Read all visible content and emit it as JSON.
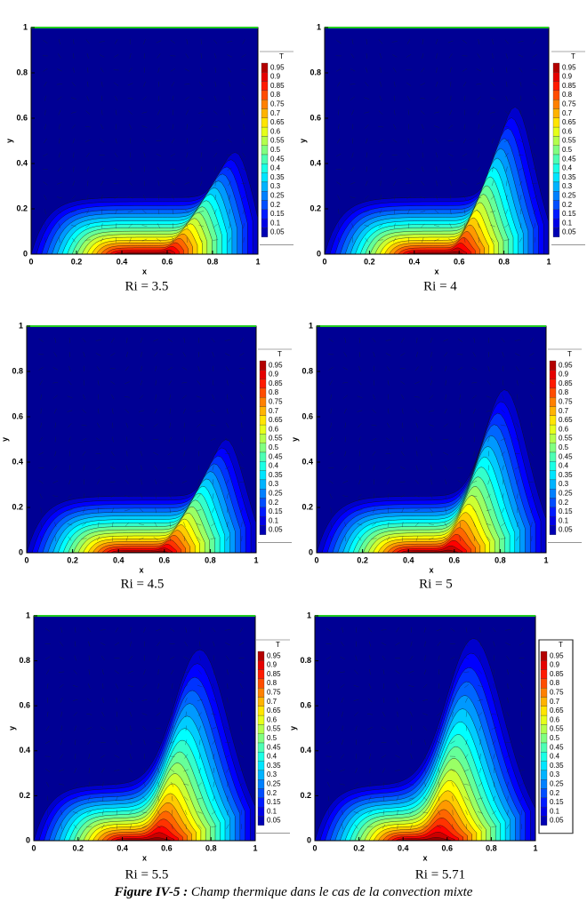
{
  "panels": [
    {
      "caption": "Ri = 3.5",
      "xlabel": "x",
      "ylabel": "y",
      "xticks": [
        0,
        0.2,
        0.4,
        0.6,
        0.8,
        1
      ],
      "yticks": [
        0,
        0.2,
        0.4,
        0.6,
        0.8,
        1
      ],
      "legend_title": "T",
      "levels": [
        0.95,
        0.9,
        0.85,
        0.8,
        0.75,
        0.7,
        0.65,
        0.6,
        0.55,
        0.5,
        0.45,
        0.4,
        0.35,
        0.3,
        0.25,
        0.2,
        0.15,
        0.1,
        0.05
      ]
    },
    {
      "caption": "Ri = 4",
      "xlabel": "x",
      "ylabel": "y",
      "xticks": [
        0,
        0.2,
        0.4,
        0.6,
        0.8,
        1
      ],
      "yticks": [
        0,
        0.2,
        0.4,
        0.6,
        0.8,
        1
      ],
      "legend_title": "T",
      "levels": [
        0.95,
        0.9,
        0.85,
        0.8,
        0.75,
        0.7,
        0.65,
        0.6,
        0.55,
        0.5,
        0.45,
        0.4,
        0.35,
        0.3,
        0.25,
        0.2,
        0.15,
        0.1,
        0.05
      ]
    },
    {
      "caption": "Ri = 4.5",
      "xlabel": "x",
      "ylabel": "y",
      "xticks": [
        0,
        0.2,
        0.4,
        0.6,
        0.8,
        1
      ],
      "yticks": [
        0,
        0.2,
        0.4,
        0.6,
        0.8,
        1
      ],
      "legend_title": "T",
      "levels": [
        0.95,
        0.9,
        0.85,
        0.8,
        0.75,
        0.7,
        0.65,
        0.6,
        0.55,
        0.5,
        0.45,
        0.4,
        0.35,
        0.3,
        0.25,
        0.2,
        0.15,
        0.1,
        0.05
      ]
    },
    {
      "caption": "Ri = 5",
      "xlabel": "x",
      "ylabel": "y",
      "xticks": [
        0,
        0.2,
        0.4,
        0.6,
        0.8,
        1
      ],
      "yticks": [
        0,
        0.2,
        0.4,
        0.6,
        0.8,
        1
      ],
      "legend_title": "T",
      "levels": [
        0.95,
        0.9,
        0.85,
        0.8,
        0.75,
        0.7,
        0.65,
        0.6,
        0.55,
        0.5,
        0.45,
        0.4,
        0.35,
        0.3,
        0.25,
        0.2,
        0.15,
        0.1,
        0.05
      ]
    },
    {
      "caption": "Ri = 5.5",
      "xlabel": "x",
      "ylabel": "y",
      "xticks": [
        0,
        0.2,
        0.4,
        0.6,
        0.8,
        1
      ],
      "yticks": [
        0,
        0.2,
        0.4,
        0.6,
        0.8,
        1
      ],
      "legend_title": "T",
      "levels": [
        0.95,
        0.9,
        0.85,
        0.8,
        0.75,
        0.7,
        0.65,
        0.6,
        0.55,
        0.5,
        0.45,
        0.4,
        0.35,
        0.3,
        0.25,
        0.2,
        0.15,
        0.1,
        0.05
      ]
    },
    {
      "caption": "Ri = 5.71",
      "xlabel": "x",
      "ylabel": "y",
      "xticks": [
        0,
        0.2,
        0.4,
        0.6,
        0.8,
        1
      ],
      "yticks": [
        0,
        0.2,
        0.4,
        0.6,
        0.8,
        1
      ],
      "legend_title": "T",
      "levels": [
        0.95,
        0.9,
        0.85,
        0.8,
        0.75,
        0.7,
        0.65,
        0.6,
        0.55,
        0.5,
        0.45,
        0.4,
        0.35,
        0.3,
        0.25,
        0.2,
        0.15,
        0.1,
        0.05
      ]
    }
  ],
  "figure_caption": {
    "label": "Figure IV-5 :",
    "text": "Champ thermique dans le cas de la convection mixte"
  }
}
